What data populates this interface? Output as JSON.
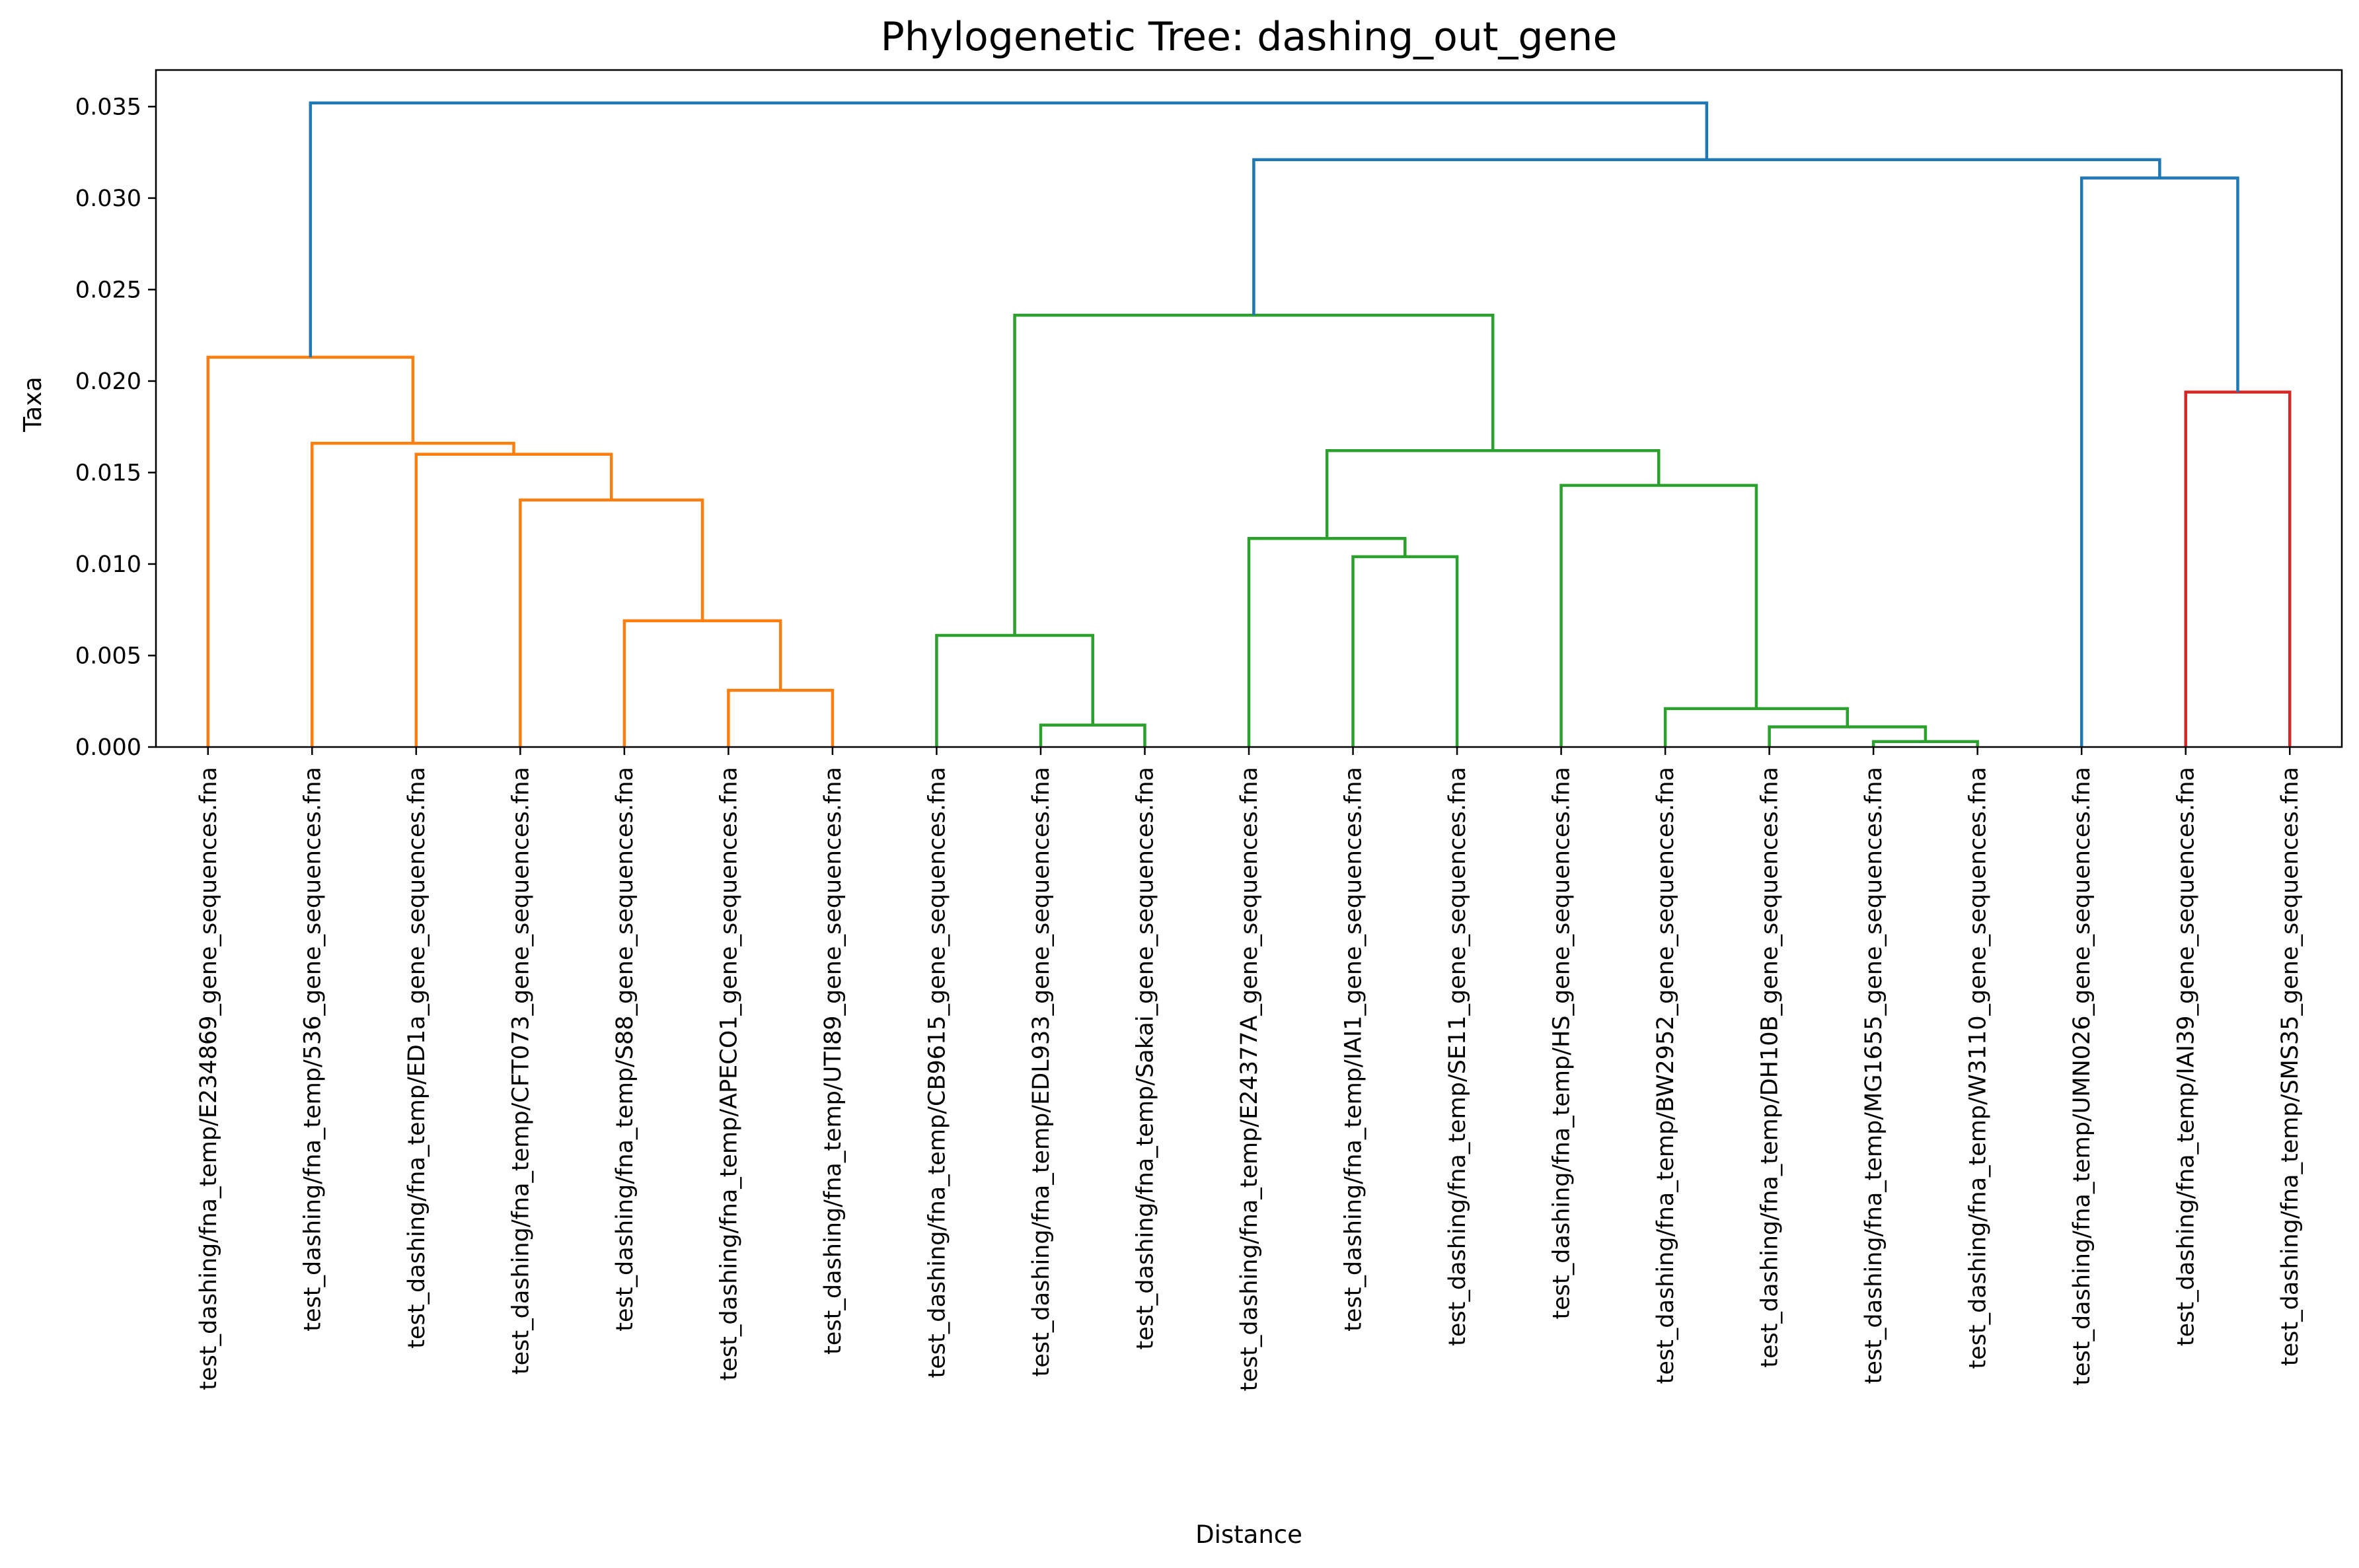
{
  "chart_data": {
    "type": "dendrogram",
    "title": "Phylogenetic Tree: dashing_out_gene",
    "xlabel": "Distance",
    "ylabel": "Taxa",
    "ylim": [
      0,
      0.037
    ],
    "yticks": [
      "0.000",
      "0.005",
      "0.010",
      "0.015",
      "0.020",
      "0.025",
      "0.030",
      "0.035"
    ],
    "leaves": [
      "test_dashing/fna_temp/E234869_gene_sequences.fna",
      "test_dashing/fna_temp/536_gene_sequences.fna",
      "test_dashing/fna_temp/ED1a_gene_sequences.fna",
      "test_dashing/fna_temp/CFT073_gene_sequences.fna",
      "test_dashing/fna_temp/S88_gene_sequences.fna",
      "test_dashing/fna_temp/APECO1_gene_sequences.fna",
      "test_dashing/fna_temp/UTI89_gene_sequences.fna",
      "test_dashing/fna_temp/CB9615_gene_sequences.fna",
      "test_dashing/fna_temp/EDL933_gene_sequences.fna",
      "test_dashing/fna_temp/Sakai_gene_sequences.fna",
      "test_dashing/fna_temp/E24377A_gene_sequences.fna",
      "test_dashing/fna_temp/IAI1_gene_sequences.fna",
      "test_dashing/fna_temp/SE11_gene_sequences.fna",
      "test_dashing/fna_temp/HS_gene_sequences.fna",
      "test_dashing/fna_temp/BW2952_gene_sequences.fna",
      "test_dashing/fna_temp/DH10B_gene_sequences.fna",
      "test_dashing/fna_temp/MG1655_gene_sequences.fna",
      "test_dashing/fna_temp/W3110_gene_sequences.fna",
      "test_dashing/fna_temp/UMN026_gene_sequences.fna",
      "test_dashing/fna_temp/IAI39_gene_sequences.fna",
      "test_dashing/fna_temp/SMS35_gene_sequences.fna"
    ],
    "merges": [
      {
        "left": "L5",
        "right": "L6",
        "height": 0.0031,
        "color": "#ff7f0e"
      },
      {
        "left": "L4",
        "right": "M0",
        "height": 0.0069,
        "color": "#ff7f0e"
      },
      {
        "left": "L3",
        "right": "M1",
        "height": 0.0135,
        "color": "#ff7f0e"
      },
      {
        "left": "L2",
        "right": "M2",
        "height": 0.016,
        "color": "#ff7f0e"
      },
      {
        "left": "L1",
        "right": "M3",
        "height": 0.0166,
        "color": "#ff7f0e"
      },
      {
        "left": "L0",
        "right": "M4",
        "height": 0.0213,
        "color": "#ff7f0e"
      },
      {
        "left": "L8",
        "right": "L9",
        "height": 0.0012,
        "color": "#2ca02c"
      },
      {
        "left": "L7",
        "right": "M6",
        "height": 0.0061,
        "color": "#2ca02c"
      },
      {
        "left": "L11",
        "right": "L12",
        "height": 0.0104,
        "color": "#2ca02c"
      },
      {
        "left": "L10",
        "right": "M8",
        "height": 0.0114,
        "color": "#2ca02c"
      },
      {
        "left": "L16",
        "right": "L17",
        "height": 0.0003,
        "color": "#2ca02c"
      },
      {
        "left": "L15",
        "right": "M10",
        "height": 0.0011,
        "color": "#2ca02c"
      },
      {
        "left": "L14",
        "right": "M11",
        "height": 0.0021,
        "color": "#2ca02c"
      },
      {
        "left": "L13",
        "right": "M12",
        "height": 0.0143,
        "color": "#2ca02c"
      },
      {
        "left": "M9",
        "right": "M13",
        "height": 0.0162,
        "color": "#2ca02c"
      },
      {
        "left": "M7",
        "right": "M14",
        "height": 0.0236,
        "color": "#2ca02c"
      },
      {
        "left": "L19",
        "right": "L20",
        "height": 0.0194,
        "color": "#d62728"
      },
      {
        "left": "L18",
        "right": "M16",
        "height": 0.0311,
        "color": "#1f77b4"
      },
      {
        "left": "M15",
        "right": "M17",
        "height": 0.0321,
        "color": "#1f77b4"
      },
      {
        "left": "M5",
        "right": "M18",
        "height": 0.0352,
        "color": "#1f77b4"
      }
    ]
  }
}
